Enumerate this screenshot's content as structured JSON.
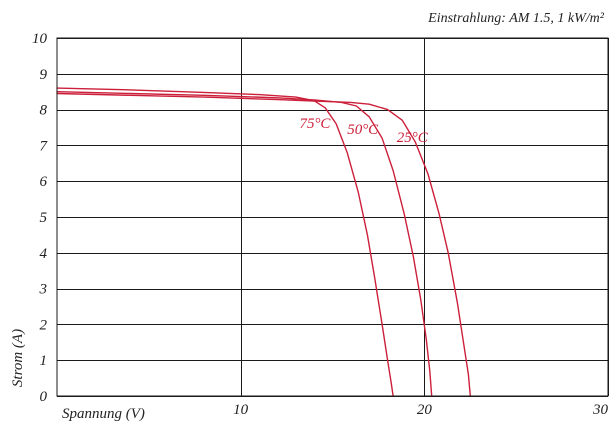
{
  "chart_data": {
    "type": "line",
    "annotation": "Einstrahlung: AM 1.5, 1 kW/m²",
    "xlabel": "Spannung (V)",
    "ylabel": "Strom (A)",
    "xlim": [
      0,
      30
    ],
    "ylim": [
      0,
      10
    ],
    "xticks": [
      10,
      20,
      30
    ],
    "yticks": [
      0,
      1,
      2,
      3,
      4,
      5,
      6,
      7,
      8,
      9,
      10
    ],
    "grid": true,
    "series_color": "#cc1f3a",
    "series": [
      {
        "name": "25°C",
        "x": [
          0,
          4,
          8,
          12,
          14,
          16,
          17,
          18,
          18.8,
          19.5,
          20.2,
          20.8,
          21.3,
          21.8,
          22.1,
          22.4,
          22.5
        ],
        "y": [
          8.45,
          8.4,
          8.35,
          8.28,
          8.24,
          8.2,
          8.15,
          8.0,
          7.7,
          7.1,
          6.2,
          5.1,
          4.0,
          2.6,
          1.6,
          0.6,
          0.0
        ]
      },
      {
        "name": "50°C",
        "x": [
          0,
          4,
          8,
          12,
          14,
          15.5,
          16.3,
          17.0,
          17.7,
          18.3,
          18.9,
          19.4,
          19.8,
          20.1,
          20.3,
          20.4
        ],
        "y": [
          8.5,
          8.45,
          8.4,
          8.33,
          8.27,
          8.2,
          8.1,
          7.8,
          7.2,
          6.3,
          5.1,
          3.9,
          2.7,
          1.6,
          0.7,
          0.0
        ]
      },
      {
        "name": "75°C",
        "x": [
          0,
          4,
          8,
          11,
          13,
          14.0,
          14.6,
          15.2,
          15.8,
          16.4,
          16.9,
          17.3,
          17.7,
          18.0,
          18.2,
          18.3
        ],
        "y": [
          8.6,
          8.55,
          8.48,
          8.42,
          8.35,
          8.25,
          8.05,
          7.6,
          6.8,
          5.7,
          4.5,
          3.3,
          2.0,
          1.0,
          0.35,
          0.0
        ]
      }
    ]
  }
}
